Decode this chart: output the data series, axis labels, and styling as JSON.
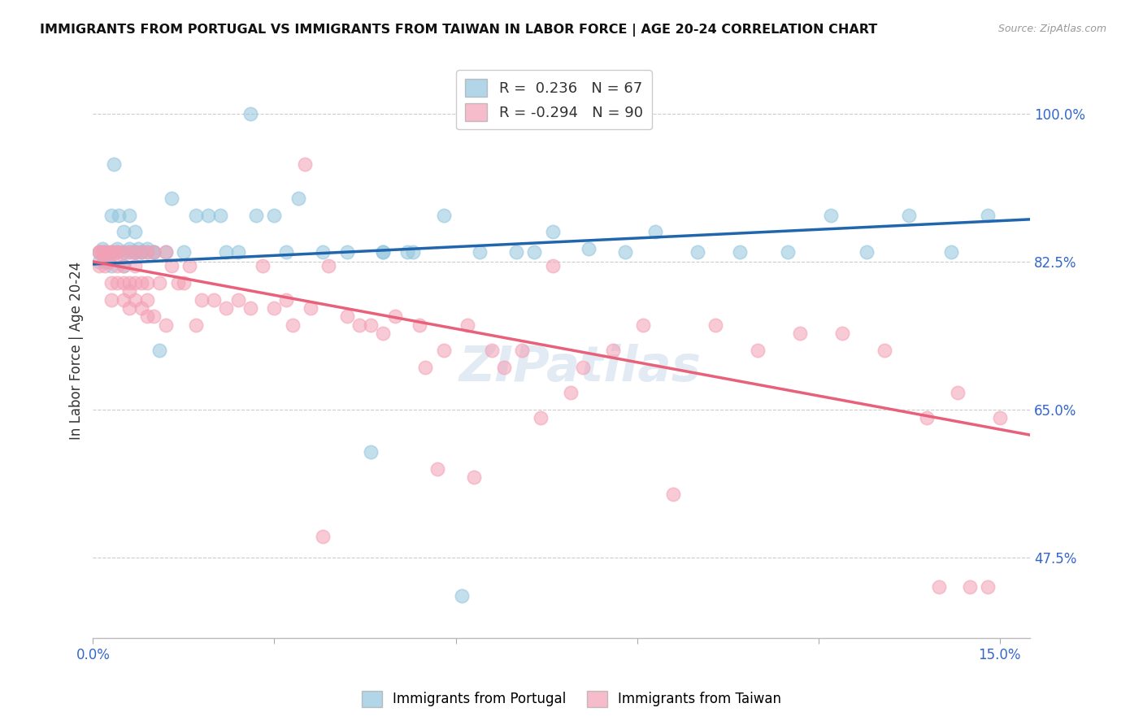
{
  "title": "IMMIGRANTS FROM PORTUGAL VS IMMIGRANTS FROM TAIWAN IN LABOR FORCE | AGE 20-24 CORRELATION CHART",
  "source_text": "Source: ZipAtlas.com",
  "ylabel": "In Labor Force | Age 20-24",
  "xlim": [
    0.0,
    0.155
  ],
  "ylim": [
    0.38,
    1.06
  ],
  "xticks": [
    0.0,
    0.03,
    0.06,
    0.09,
    0.12,
    0.15
  ],
  "xticklabels": [
    "0.0%",
    "",
    "",
    "",
    "",
    "15.0%"
  ],
  "yticks": [
    0.475,
    0.65,
    0.825,
    1.0
  ],
  "yticklabels": [
    "47.5%",
    "65.0%",
    "82.5%",
    "100.0%"
  ],
  "R_portugal": 0.236,
  "N_portugal": 67,
  "R_taiwan": -0.294,
  "N_taiwan": 90,
  "blue_color": "#92c5de",
  "pink_color": "#f4a0b5",
  "blue_line_color": "#2166ac",
  "pink_line_color": "#e8607a",
  "blue_line_x": [
    0.0,
    0.155
  ],
  "blue_line_y": [
    0.822,
    0.875
  ],
  "pink_line_x": [
    0.0,
    0.155
  ],
  "pink_line_y": [
    0.825,
    0.62
  ],
  "portugal_x": [
    0.001,
    0.001,
    0.0015,
    0.002,
    0.002,
    0.0025,
    0.003,
    0.003,
    0.003,
    0.0035,
    0.004,
    0.004,
    0.0042,
    0.005,
    0.005,
    0.005,
    0.006,
    0.006,
    0.006,
    0.007,
    0.007,
    0.007,
    0.0075,
    0.008,
    0.008,
    0.009,
    0.009,
    0.01,
    0.01,
    0.011,
    0.012,
    0.013,
    0.015,
    0.017,
    0.019,
    0.021,
    0.024,
    0.027,
    0.03,
    0.034,
    0.038,
    0.042,
    0.048,
    0.053,
    0.058,
    0.064,
    0.07,
    0.076,
    0.082,
    0.088,
    0.093,
    0.1,
    0.107,
    0.115,
    0.122,
    0.128,
    0.135,
    0.142,
    0.148,
    0.032,
    0.026,
    0.022,
    0.048,
    0.046,
    0.052,
    0.061,
    0.073
  ],
  "portugal_y": [
    0.825,
    0.836,
    0.84,
    0.836,
    0.825,
    0.825,
    0.88,
    0.836,
    0.82,
    0.94,
    0.836,
    0.84,
    0.88,
    0.836,
    0.86,
    0.82,
    0.836,
    0.84,
    0.88,
    0.836,
    0.86,
    0.836,
    0.84,
    0.836,
    0.836,
    0.836,
    0.84,
    0.836,
    0.836,
    0.72,
    0.836,
    0.9,
    0.836,
    0.88,
    0.88,
    0.88,
    0.836,
    0.88,
    0.88,
    0.9,
    0.836,
    0.836,
    0.836,
    0.836,
    0.88,
    0.836,
    0.836,
    0.86,
    0.84,
    0.836,
    0.86,
    0.836,
    0.836,
    0.836,
    0.88,
    0.836,
    0.88,
    0.836,
    0.88,
    0.836,
    1.0,
    0.836,
    0.836,
    0.6,
    0.836,
    0.43,
    0.836
  ],
  "taiwan_x": [
    0.001,
    0.001,
    0.001,
    0.0015,
    0.002,
    0.002,
    0.002,
    0.0025,
    0.003,
    0.003,
    0.003,
    0.003,
    0.004,
    0.004,
    0.004,
    0.004,
    0.005,
    0.005,
    0.005,
    0.005,
    0.006,
    0.006,
    0.006,
    0.006,
    0.007,
    0.007,
    0.007,
    0.007,
    0.008,
    0.008,
    0.008,
    0.009,
    0.009,
    0.009,
    0.009,
    0.01,
    0.01,
    0.011,
    0.012,
    0.012,
    0.013,
    0.014,
    0.015,
    0.016,
    0.017,
    0.018,
    0.02,
    0.022,
    0.024,
    0.026,
    0.028,
    0.03,
    0.033,
    0.036,
    0.039,
    0.042,
    0.046,
    0.05,
    0.054,
    0.058,
    0.062,
    0.066,
    0.071,
    0.076,
    0.081,
    0.086,
    0.091,
    0.096,
    0.103,
    0.11,
    0.117,
    0.124,
    0.131,
    0.138,
    0.143,
    0.148,
    0.032,
    0.044,
    0.048,
    0.055,
    0.057,
    0.063,
    0.068,
    0.074,
    0.079,
    0.035,
    0.038,
    0.14,
    0.145,
    0.15
  ],
  "taiwan_y": [
    0.836,
    0.836,
    0.82,
    0.836,
    0.836,
    0.82,
    0.836,
    0.825,
    0.836,
    0.836,
    0.8,
    0.78,
    0.836,
    0.82,
    0.836,
    0.8,
    0.836,
    0.82,
    0.8,
    0.78,
    0.836,
    0.8,
    0.79,
    0.77,
    0.836,
    0.82,
    0.8,
    0.78,
    0.836,
    0.8,
    0.77,
    0.836,
    0.8,
    0.78,
    0.76,
    0.836,
    0.76,
    0.8,
    0.836,
    0.75,
    0.82,
    0.8,
    0.8,
    0.82,
    0.75,
    0.78,
    0.78,
    0.77,
    0.78,
    0.77,
    0.82,
    0.77,
    0.75,
    0.77,
    0.82,
    0.76,
    0.75,
    0.76,
    0.75,
    0.72,
    0.75,
    0.72,
    0.72,
    0.82,
    0.7,
    0.72,
    0.75,
    0.55,
    0.75,
    0.72,
    0.74,
    0.74,
    0.72,
    0.64,
    0.67,
    0.44,
    0.78,
    0.75,
    0.74,
    0.7,
    0.58,
    0.57,
    0.7,
    0.64,
    0.67,
    0.94,
    0.5,
    0.44,
    0.44,
    0.64
  ]
}
